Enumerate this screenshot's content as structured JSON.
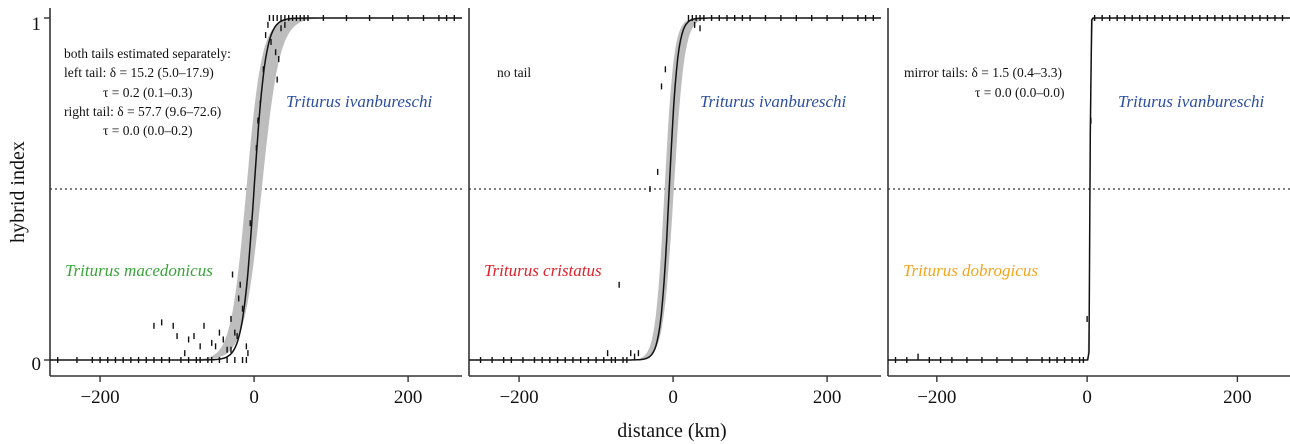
{
  "chart_data": {
    "type": "line",
    "ylabel": "hybrid index",
    "xlabel": "distance (km)",
    "ylim": [
      0,
      1
    ],
    "yticks": [
      0,
      1
    ],
    "reference_line_y": 0.5,
    "panels": [
      {
        "xlim": [
          -265,
          270
        ],
        "xticks": [
          -200,
          0,
          200
        ],
        "center": 0,
        "width": 30,
        "band_width": 40,
        "annotations": [
          "both tails estimated separately:",
          "left tail: δ = 15.2 (5.0–17.9)",
          "τ = 0.2 (0.1–0.3)",
          "right tail: δ = 57.7 (9.6–72.6)",
          "τ = 0.0 (0.0–0.2)"
        ],
        "species_left": {
          "name": "Triturus macedonicus",
          "color": "#3aa33a"
        },
        "species_right": {
          "name": "Triturus ivanbureschi",
          "color": "#2b4e9e"
        },
        "points": [
          [
            -255,
            0
          ],
          [
            -230,
            0
          ],
          [
            -210,
            0
          ],
          [
            -200,
            0
          ],
          [
            -190,
            0
          ],
          [
            -180,
            0
          ],
          [
            -170,
            0
          ],
          [
            -160,
            0
          ],
          [
            -150,
            0
          ],
          [
            -140,
            0
          ],
          [
            -130,
            0
          ],
          [
            -120,
            0
          ],
          [
            -110,
            0
          ],
          [
            -95,
            0
          ],
          [
            -90,
            0.02
          ],
          [
            -85,
            0
          ],
          [
            -75,
            0
          ],
          [
            -70,
            0
          ],
          [
            -60,
            0
          ],
          [
            -55,
            0
          ],
          [
            -45,
            0
          ],
          [
            -35,
            0
          ],
          [
            -25,
            0
          ],
          [
            -15,
            0
          ],
          [
            -10,
            0
          ],
          [
            -8,
            0.02
          ],
          [
            -130,
            0.1
          ],
          [
            -120,
            0.11
          ],
          [
            -105,
            0.1
          ],
          [
            -100,
            0.07
          ],
          [
            -85,
            0.06
          ],
          [
            -78,
            0.07
          ],
          [
            -70,
            0.04
          ],
          [
            -65,
            0.1
          ],
          [
            -55,
            0.05
          ],
          [
            -50,
            0.04
          ],
          [
            -45,
            0.08
          ],
          [
            -40,
            0.06
          ],
          [
            -35,
            0.03
          ],
          [
            -30,
            0.12
          ],
          [
            -28,
            0.25
          ],
          [
            -25,
            0.08
          ],
          [
            -22,
            0.07
          ],
          [
            -20,
            0.18
          ],
          [
            -18,
            0.22
          ],
          [
            -15,
            0.15
          ],
          [
            -10,
            0.04
          ],
          [
            -30,
            0.03
          ],
          [
            -5,
            0.4
          ],
          [
            3,
            0.62
          ],
          [
            5,
            0.7
          ],
          [
            8,
            0.75
          ],
          [
            12,
            0.85
          ],
          [
            15,
            0.95
          ],
          [
            18,
            0.98
          ],
          [
            20,
            1
          ],
          [
            25,
            1
          ],
          [
            30,
            1
          ],
          [
            35,
            1
          ],
          [
            40,
            1
          ],
          [
            45,
            1
          ],
          [
            50,
            1
          ],
          [
            55,
            1
          ],
          [
            60,
            1
          ],
          [
            65,
            1
          ],
          [
            70,
            1
          ],
          [
            90,
            1
          ],
          [
            120,
            1
          ],
          [
            150,
            1
          ],
          [
            180,
            1
          ],
          [
            200,
            1
          ],
          [
            220,
            1
          ],
          [
            240,
            1
          ],
          [
            250,
            1
          ],
          [
            260,
            1
          ],
          [
            22,
            0.93
          ],
          [
            28,
            0.9
          ],
          [
            32,
            0.88
          ],
          [
            35,
            0.97
          ],
          [
            40,
            0.98
          ],
          [
            30,
            0.82
          ]
        ]
      },
      {
        "xlim": [
          -265,
          270
        ],
        "xticks": [
          -200,
          0,
          200
        ],
        "center": -5,
        "width": 22,
        "band_width": 24,
        "annotations": [
          "no tail"
        ],
        "species_left": {
          "name": "Triturus cristatus",
          "color": "#e0202a"
        },
        "species_right": {
          "name": "Triturus ivanbureschi",
          "color": "#2b4e9e"
        },
        "points": [
          [
            -250,
            0
          ],
          [
            -235,
            0
          ],
          [
            -220,
            0
          ],
          [
            -210,
            0
          ],
          [
            -195,
            0
          ],
          [
            -180,
            0
          ],
          [
            -170,
            0
          ],
          [
            -160,
            0
          ],
          [
            -150,
            0
          ],
          [
            -140,
            0
          ],
          [
            -130,
            0
          ],
          [
            -120,
            0
          ],
          [
            -110,
            0
          ],
          [
            -100,
            0
          ],
          [
            -90,
            0
          ],
          [
            -85,
            0.02
          ],
          [
            -80,
            0
          ],
          [
            -75,
            0
          ],
          [
            -70,
            0.22
          ],
          [
            -65,
            0
          ],
          [
            -60,
            0
          ],
          [
            -55,
            0.02
          ],
          [
            -50,
            0.01
          ],
          [
            -45,
            0.02
          ],
          [
            -30,
            0.5
          ],
          [
            -20,
            0.55
          ],
          [
            -15,
            0.8
          ],
          [
            -10,
            0.85
          ],
          [
            20,
            1
          ],
          [
            25,
            1
          ],
          [
            30,
            1
          ],
          [
            35,
            1
          ],
          [
            40,
            1
          ],
          [
            50,
            1
          ],
          [
            60,
            1
          ],
          [
            70,
            1
          ],
          [
            80,
            1
          ],
          [
            90,
            1
          ],
          [
            100,
            1
          ],
          [
            120,
            1
          ],
          [
            140,
            1
          ],
          [
            160,
            1
          ],
          [
            180,
            1
          ],
          [
            200,
            1
          ],
          [
            220,
            1
          ],
          [
            240,
            1
          ],
          [
            250,
            1
          ],
          [
            260,
            1
          ],
          [
            28,
            0.98
          ],
          [
            35,
            0.97
          ]
        ]
      },
      {
        "xlim": [
          -265,
          270
        ],
        "xticks": [
          -200,
          0,
          200
        ],
        "center": 4,
        "width": 1.6,
        "band_width": 2.5,
        "annotations": [
          "mirror tails: δ = 1.5 (0.4–3.3)",
          "τ = 0.0 (0.0–0.0)"
        ],
        "species_left": {
          "name": "Triturus dobrogicus",
          "color": "#f2a51a"
        },
        "species_right": {
          "name": "Triturus ivanbureschi",
          "color": "#2b4e9e"
        },
        "points": [
          [
            -255,
            0
          ],
          [
            -240,
            0
          ],
          [
            -225,
            0.01
          ],
          [
            -210,
            0
          ],
          [
            -195,
            0
          ],
          [
            -180,
            0
          ],
          [
            -160,
            0
          ],
          [
            -140,
            0
          ],
          [
            -120,
            0
          ],
          [
            -100,
            0
          ],
          [
            -80,
            0
          ],
          [
            -60,
            0
          ],
          [
            -50,
            0
          ],
          [
            -40,
            0
          ],
          [
            -30,
            0
          ],
          [
            -20,
            0
          ],
          [
            -10,
            0
          ],
          [
            -5,
            0
          ],
          [
            0,
            0.12
          ],
          [
            5,
            0.7
          ],
          [
            10,
            1
          ],
          [
            20,
            1
          ],
          [
            30,
            1
          ],
          [
            40,
            1
          ],
          [
            50,
            1
          ],
          [
            60,
            1
          ],
          [
            70,
            1
          ],
          [
            80,
            1
          ],
          [
            90,
            1
          ],
          [
            100,
            1
          ],
          [
            110,
            1
          ],
          [
            120,
            1
          ],
          [
            130,
            1
          ],
          [
            140,
            1
          ],
          [
            150,
            1
          ],
          [
            160,
            1
          ],
          [
            170,
            1
          ],
          [
            180,
            1
          ],
          [
            190,
            1
          ],
          [
            200,
            1
          ],
          [
            210,
            1
          ],
          [
            220,
            1
          ],
          [
            230,
            1
          ],
          [
            240,
            1
          ],
          [
            250,
            1
          ],
          [
            260,
            1
          ]
        ]
      }
    ]
  }
}
